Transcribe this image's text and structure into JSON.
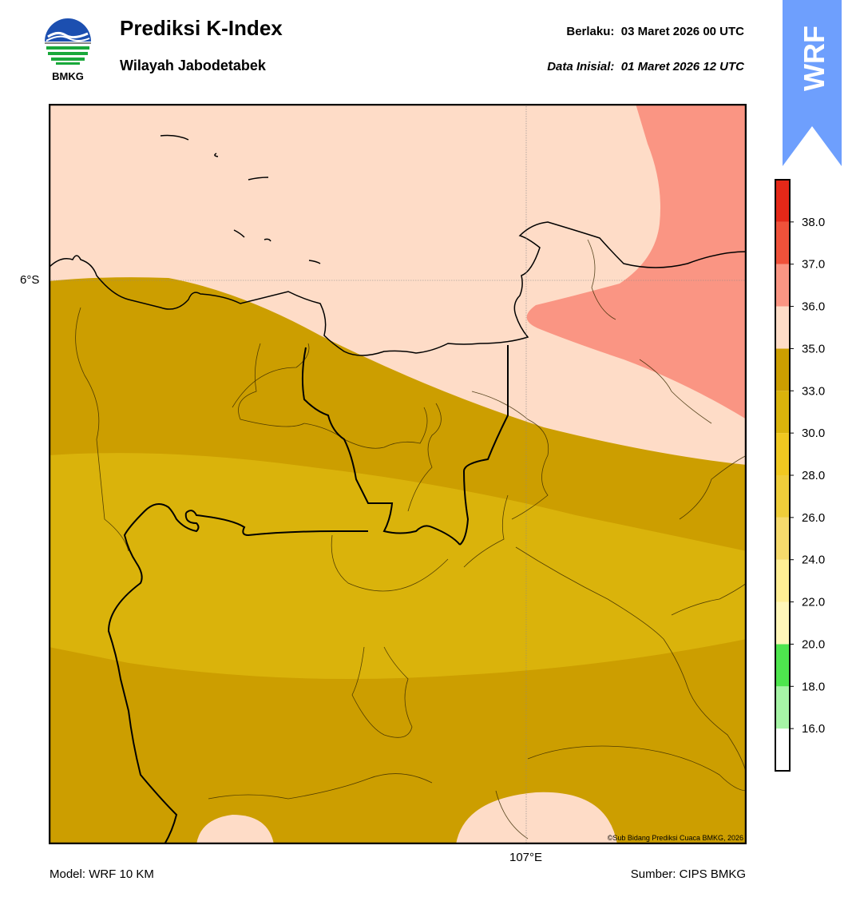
{
  "header": {
    "title": "Prediksi K-Index",
    "subtitle": "Wilayah Jabodetabek",
    "valid_label": "Berlaku:",
    "valid_time": "03 Maret 2026 00 UTC",
    "init_label": "Data Inisial:",
    "init_time": "01 Maret 2026 12 UTC"
  },
  "logo": {
    "text": "BMKG",
    "icon": "bmkg-logo-icon"
  },
  "badge": {
    "text": "WRF",
    "color": "#6e9ffd",
    "icon": "wrf-badge-arrow"
  },
  "map": {
    "lat_label": "6°S",
    "lon_label": "107°E",
    "copyright": "©Sub Bidang Prediksi Cuaca BMKG, 2026",
    "colors": {
      "below_20": "#ffffff",
      "k_33_35": "#cc9e00",
      "k_30_33": "#dab30b",
      "k_35_36": "#fedcc7",
      "k_36_37": "#fa9583"
    }
  },
  "colorbar": {
    "bands": [
      {
        "from": 15.0,
        "to": 16.0,
        "color": "#ffffff"
      },
      {
        "from": 16.0,
        "to": 18.0,
        "color": "#a6f4a6"
      },
      {
        "from": 18.0,
        "to": 20.0,
        "color": "#4ee54e"
      },
      {
        "from": 20.0,
        "to": 22.0,
        "color": "#fff6b8"
      },
      {
        "from": 22.0,
        "to": 24.0,
        "color": "#ffee94"
      },
      {
        "from": 24.0,
        "to": 26.0,
        "color": "#f6da6c"
      },
      {
        "from": 26.0,
        "to": 28.0,
        "color": "#efcd3a"
      },
      {
        "from": 28.0,
        "to": 30.0,
        "color": "#f0c820"
      },
      {
        "from": 30.0,
        "to": 33.0,
        "color": "#dab30b"
      },
      {
        "from": 33.0,
        "to": 35.0,
        "color": "#cc9e00"
      },
      {
        "from": 35.0,
        "to": 36.0,
        "color": "#fedcc7"
      },
      {
        "from": 36.0,
        "to": 37.0,
        "color": "#fa9583"
      },
      {
        "from": 37.0,
        "to": 38.0,
        "color": "#ef513a"
      },
      {
        "from": 38.0,
        "to": 39.0,
        "color": "#e42818"
      }
    ],
    "ticks": [
      "16.0",
      "18.0",
      "20.0",
      "22.0",
      "24.0",
      "26.0",
      "28.0",
      "30.0",
      "33.0",
      "35.0",
      "36.0",
      "37.0",
      "38.0"
    ]
  },
  "footer": {
    "model": "Model: WRF 10 KM",
    "source": "Sumber: CIPS BMKG"
  }
}
